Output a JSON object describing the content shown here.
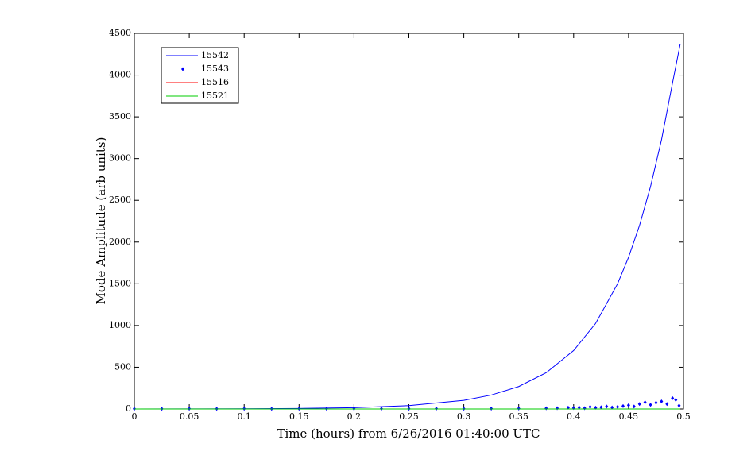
{
  "chart_data": {
    "type": "line",
    "xlabel": "Time (hours) from 6/26/2016 01:40:00 UTC",
    "ylabel": "Mode Amplitude (arb units)",
    "xlim": [
      0,
      0.5
    ],
    "xticks": [
      0,
      0.05,
      0.1,
      0.15,
      0.2,
      0.25,
      0.3,
      0.35,
      0.4,
      0.45,
      0.5
    ],
    "ylim": [
      0,
      4500
    ],
    "yticks": [
      0,
      500,
      1000,
      1500,
      2000,
      2500,
      3000,
      3500,
      4000,
      4500
    ],
    "grid": false,
    "legend": "upper-left",
    "series": [
      {
        "name": "15542",
        "color": "#0000ff",
        "style": "line",
        "x": [
          0,
          0.05,
          0.1,
          0.15,
          0.2,
          0.25,
          0.3,
          0.325,
          0.35,
          0.375,
          0.4,
          0.42,
          0.44,
          0.45,
          0.46,
          0.47,
          0.48,
          0.49,
          0.497
        ],
        "values": [
          0,
          1,
          2,
          6,
          15,
          40,
          104,
          167,
          269,
          434,
          700,
          1025,
          1500,
          1818,
          2200,
          2665,
          3225,
          3905,
          4370
        ]
      },
      {
        "name": "15543",
        "color": "#0000ff",
        "style": "markers",
        "x": [
          0,
          0.025,
          0.05,
          0.075,
          0.1,
          0.125,
          0.15,
          0.175,
          0.2,
          0.225,
          0.25,
          0.275,
          0.3,
          0.325,
          0.35,
          0.375,
          0.385,
          0.395,
          0.4,
          0.405,
          0.41,
          0.415,
          0.42,
          0.425,
          0.43,
          0.435,
          0.44,
          0.445,
          0.45,
          0.455,
          0.46,
          0.465,
          0.47,
          0.475,
          0.48,
          0.485,
          0.49,
          0.493,
          0.496
        ],
        "values": [
          2,
          2,
          3,
          2,
          3,
          2,
          3,
          3,
          4,
          3,
          4,
          5,
          4,
          5,
          6,
          8,
          10,
          15,
          12,
          18,
          10,
          25,
          15,
          20,
          30,
          18,
          25,
          35,
          45,
          30,
          60,
          80,
          50,
          75,
          90,
          60,
          130,
          110,
          40
        ]
      },
      {
        "name": "15516",
        "color": "#ff0000",
        "style": "line",
        "x": [
          0,
          0.25,
          0.497
        ],
        "values": [
          0,
          0,
          0
        ]
      },
      {
        "name": "15521",
        "color": "#00cc00",
        "style": "line",
        "x": [
          0,
          0.25,
          0.497
        ],
        "values": [
          0,
          0,
          0
        ]
      }
    ]
  }
}
